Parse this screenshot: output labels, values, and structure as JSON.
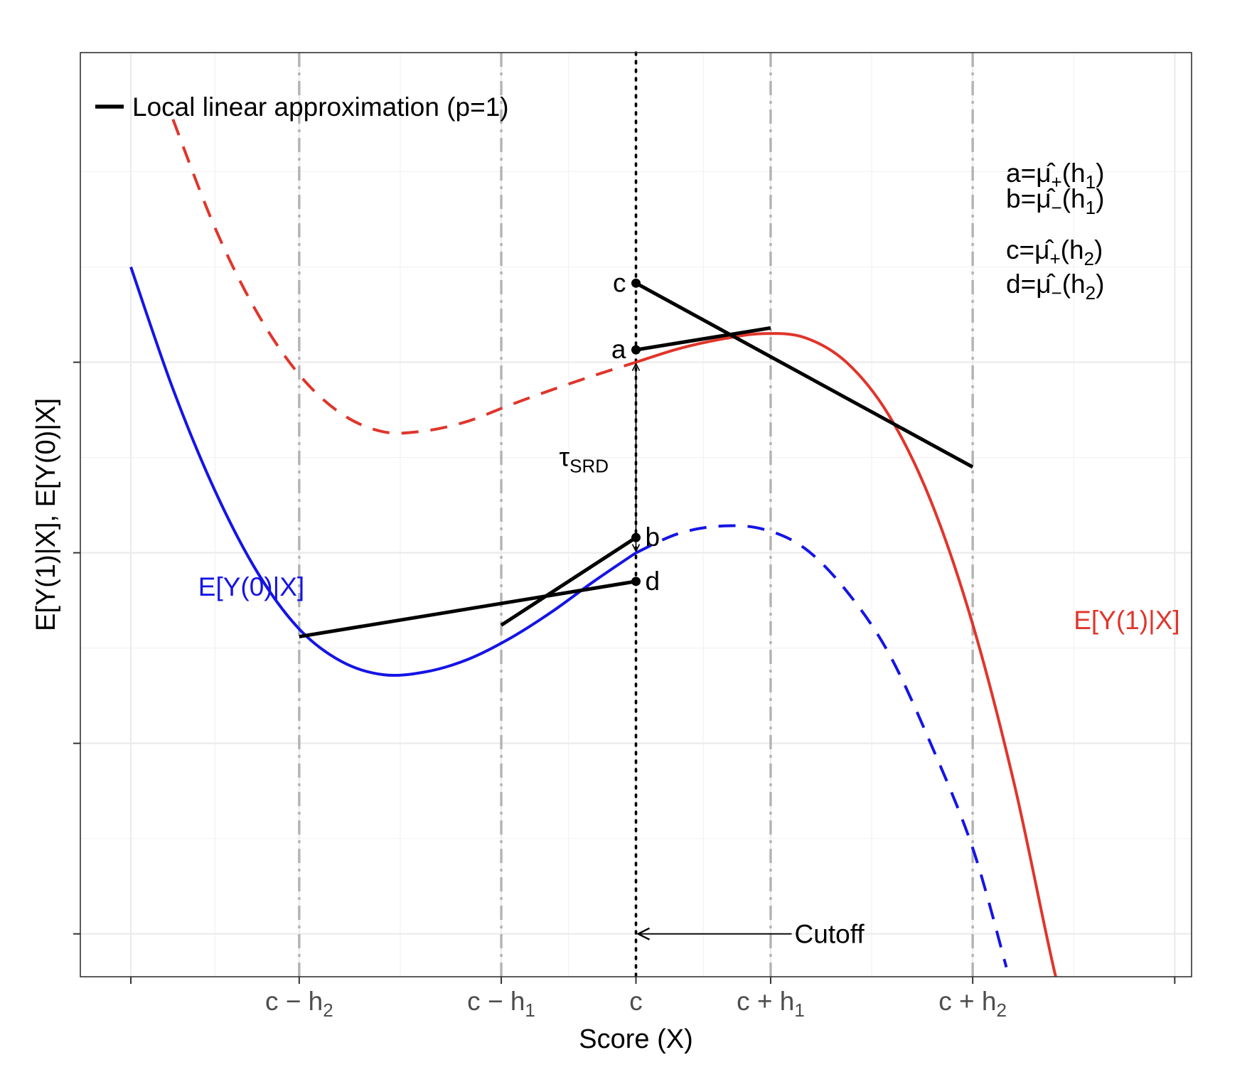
{
  "chart_data": {
    "type": "line",
    "xlabel": "Score (X)",
    "ylabel": "E[Y(1)|X], E[Y(0)|X]",
    "x_ticks": [
      {
        "x": 0,
        "label": ""
      },
      {
        "x": 2,
        "label": "c − h2",
        "base": "c − h",
        "sub": "2"
      },
      {
        "x": 4.4,
        "label": "c − h1",
        "base": "c − h",
        "sub": "1"
      },
      {
        "x": 6,
        "label": "c",
        "base": "c",
        "sub": ""
      },
      {
        "x": 7.6,
        "label": "c + h1",
        "base": "c + h",
        "sub": "1"
      },
      {
        "x": 10,
        "label": "c + h2",
        "base": "c + h",
        "sub": "2"
      },
      {
        "x": 12.4,
        "label": ""
      }
    ],
    "y_ticks": [
      0,
      2,
      4,
      6
    ],
    "xlim": [
      -0.6,
      12.6
    ],
    "ylim": [
      -0.45,
      9.25
    ],
    "legend": {
      "label": "Local linear approximation (p=1)",
      "position": "top-left"
    },
    "series": [
      {
        "name": "E[Y(1)|X]",
        "color": "#e0352b",
        "style": "dashed",
        "x": [
          0.5,
          1.0,
          1.5,
          2.0,
          2.5,
          3.0,
          3.5,
          4.0,
          4.5,
          5.0,
          5.5,
          6.0
        ],
        "y": [
          8.55,
          7.41,
          6.52,
          5.87,
          5.46,
          5.27,
          5.28,
          5.38,
          5.55,
          5.71,
          5.86,
          6.0
        ]
      },
      {
        "name": "E[Y(1)|X]",
        "color": "#e0352b",
        "style": "solid",
        "x": [
          6.0,
          6.5,
          7.0,
          7.5,
          8.0,
          8.5,
          9.0,
          9.5,
          10.0,
          10.5,
          11.0,
          11.2
        ],
        "y": [
          6.0,
          6.14,
          6.24,
          6.3,
          6.26,
          6.0,
          5.45,
          4.55,
          3.25,
          1.55,
          -0.5,
          -0.88
        ]
      },
      {
        "name": "E[Y(0)|X]",
        "color": "#1414e6",
        "style": "solid",
        "x": [
          0.0,
          0.5,
          1.0,
          1.5,
          2.0,
          2.5,
          3.0,
          3.5,
          4.0,
          4.5,
          5.0,
          5.5,
          6.0
        ],
        "y": [
          7.0,
          5.72,
          4.65,
          3.8,
          3.2,
          2.86,
          2.72,
          2.75,
          2.88,
          3.1,
          3.38,
          3.7,
          4.0
        ]
      },
      {
        "name": "E[Y(0)|X]",
        "color": "#1414e6",
        "style": "dashed",
        "x": [
          6.0,
          6.5,
          7.0,
          7.5,
          8.0,
          8.5,
          9.0,
          9.5,
          10.0,
          10.4
        ],
        "y": [
          4.0,
          4.2,
          4.28,
          4.25,
          4.05,
          3.6,
          2.95,
          2.0,
          0.9,
          -0.35
        ]
      },
      {
        "name": "a",
        "color": "#000000",
        "style": "solid",
        "x": [
          6.0,
          7.6
        ],
        "y": [
          6.13,
          6.36
        ]
      },
      {
        "name": "c",
        "color": "#000000",
        "style": "solid",
        "x": [
          6.0,
          10.0
        ],
        "y": [
          6.83,
          4.9
        ]
      },
      {
        "name": "b",
        "color": "#000000",
        "style": "solid",
        "x": [
          4.4,
          6.0
        ],
        "y": [
          3.24,
          4.16
        ]
      },
      {
        "name": "d",
        "color": "#000000",
        "style": "solid",
        "x": [
          2.0,
          6.0
        ],
        "y": [
          3.12,
          3.7
        ]
      }
    ],
    "points": [
      {
        "label": "c",
        "x": 6.0,
        "y": 6.83,
        "label_side": "left"
      },
      {
        "label": "a",
        "x": 6.0,
        "y": 6.13,
        "label_side": "left"
      },
      {
        "label": "b",
        "x": 6.0,
        "y": 4.16,
        "label_side": "right"
      },
      {
        "label": "d",
        "x": 6.0,
        "y": 3.7,
        "label_side": "right"
      }
    ],
    "vertical_lines": [
      {
        "x": 2,
        "style": "dashdot",
        "color": "#b3b3b3"
      },
      {
        "x": 4.4,
        "style": "dashdot",
        "color": "#b3b3b3"
      },
      {
        "x": 7.6,
        "style": "dashdot",
        "color": "#b3b3b3"
      },
      {
        "x": 10,
        "style": "dashdot",
        "color": "#b3b3b3"
      },
      {
        "x": 6,
        "style": "dotted",
        "color": "#000000"
      }
    ],
    "annotations": {
      "tau": {
        "label": "τSRD",
        "base": "τ",
        "sub": "SRD",
        "x_top": 6.0,
        "y_top": 6.0,
        "y_bottom": 4.0
      },
      "cutoff": {
        "label": "Cutoff",
        "arrow_from_x": 7.85,
        "arrow_to_x": 6.0,
        "y": 0.0
      },
      "curve_labels": [
        {
          "label": "E[Y(0)|X]",
          "color": "#1414e6",
          "x": 0.8,
          "y": 3.55
        },
        {
          "label": "E[Y(1)|X]",
          "color": "#e0352b",
          "x": 11.2,
          "y": 3.2
        }
      ],
      "formulas": [
        {
          "label": "a=μ̂+(h1)",
          "lhs": "a=",
          "sign": "+",
          "h": "1"
        },
        {
          "label": "b=μ̂−(h1)",
          "lhs": "b=",
          "sign": "−",
          "h": "1"
        },
        {
          "label": "c=μ̂+(h2)",
          "lhs": "c=",
          "sign": "+",
          "h": "2"
        },
        {
          "label": "d=μ̂−(h2)",
          "lhs": "d=",
          "sign": "−",
          "h": "2"
        }
      ]
    },
    "grid": true
  }
}
